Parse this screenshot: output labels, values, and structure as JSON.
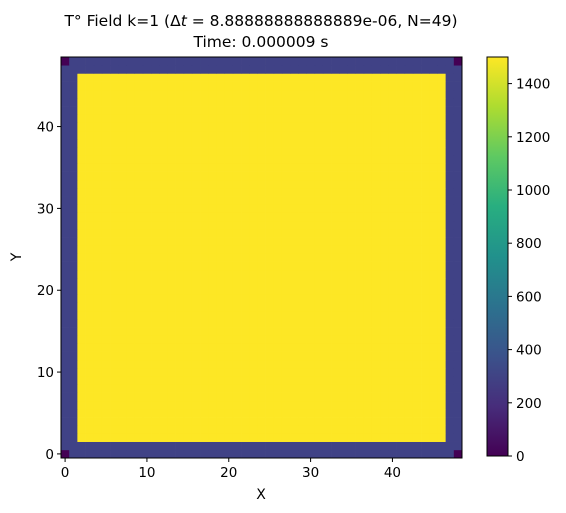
{
  "chart_data": {
    "type": "heatmap",
    "title_line1_prefix": "T° Field k=1 (",
    "title_delta": "Δ",
    "title_t": "t",
    "title_line1_suffix": " = 8.88888888888889e-06, N=49)",
    "title_line2": "Time: 0.000009 s",
    "xlabel": "X",
    "ylabel": "Y",
    "xlim": [
      -0.5,
      48.5
    ],
    "ylim": [
      -0.5,
      48.5
    ],
    "xticks": [
      0,
      10,
      20,
      30,
      40
    ],
    "yticks": [
      0,
      10,
      20,
      30,
      40
    ],
    "grid_n": 49,
    "colormap": "viridis",
    "vmin": 0,
    "vmax": 1500,
    "colorbar_ticks": [
      0,
      200,
      400,
      600,
      800,
      1000,
      1200,
      1400
    ],
    "regions": [
      {
        "name": "corner",
        "cells": "(0,0),(0,48),(48,0),(48,48)",
        "value": 0
      },
      {
        "name": "boundary-band",
        "cells": "i or j in {0,1,47,48}, excluding corners",
        "value": 300
      },
      {
        "name": "interior",
        "cells": "2 <= i,j <= 46",
        "value": 1500
      }
    ]
  }
}
